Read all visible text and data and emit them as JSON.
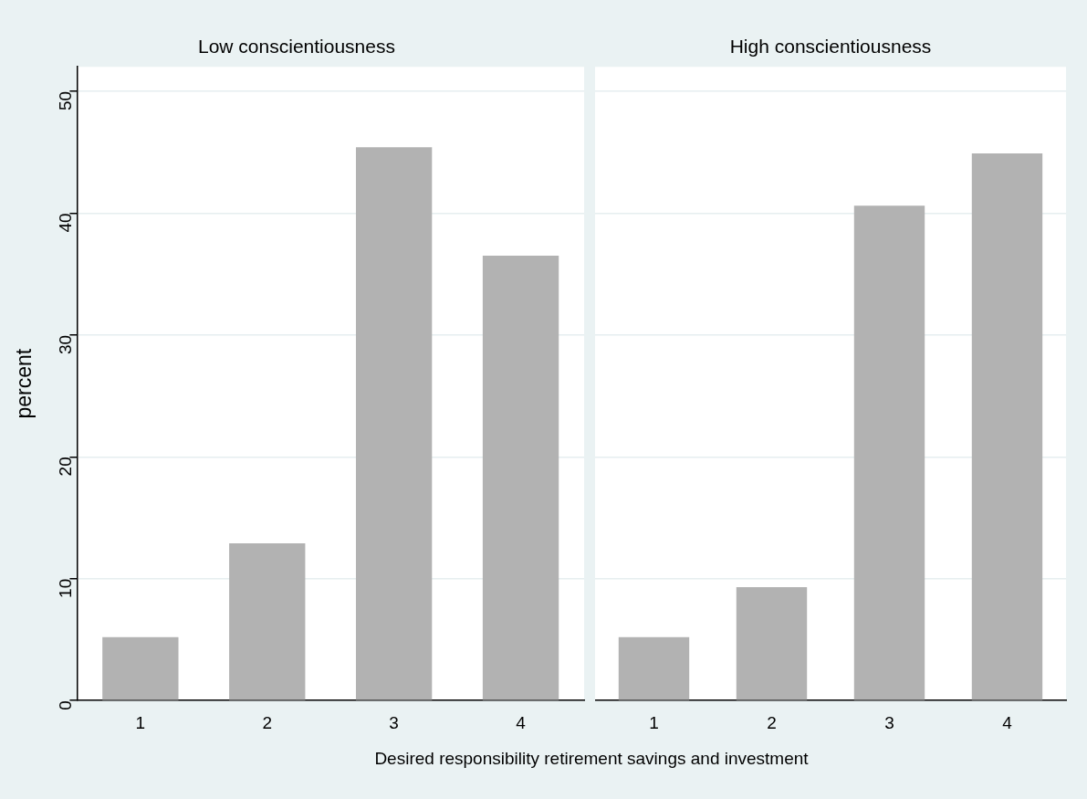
{
  "chart_data": [
    {
      "type": "bar",
      "title": "Low conscientiousness",
      "ylabel": "percent",
      "xlabel": "Desired responsibility retirement savings and investment",
      "categories": [
        "1",
        "2",
        "3",
        "4"
      ],
      "values": [
        5.2,
        12.9,
        45.4,
        36.5
      ],
      "color": "#b2b2b2",
      "ylim": [
        0,
        52
      ],
      "yticks": [
        0,
        10,
        20,
        30,
        40,
        50
      ],
      "grid": "y"
    },
    {
      "type": "bar",
      "title": "High conscientiousness",
      "categories": [
        "1",
        "2",
        "3",
        "4"
      ],
      "values": [
        5.2,
        9.3,
        40.6,
        44.9
      ],
      "color": "#b2b2b2",
      "ylim": [
        0,
        52
      ],
      "yticks": [
        0,
        10,
        20,
        30,
        40,
        50
      ],
      "grid": "y",
      "tick_labels": "x"
    }
  ]
}
